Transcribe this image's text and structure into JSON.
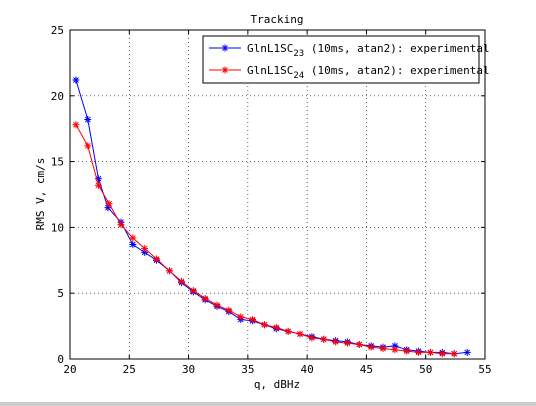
{
  "chart_data": {
    "type": "line",
    "title": "Tracking",
    "xlabel": "q, dBHz",
    "ylabel": "RMS V, cm/s",
    "xlim": [
      20,
      55
    ],
    "ylim": [
      0,
      25
    ],
    "xticks": [
      20,
      25,
      30,
      35,
      40,
      45,
      50,
      55
    ],
    "yticks": [
      0,
      5,
      10,
      15,
      20,
      25
    ],
    "grid": true,
    "legend_position": "top-right",
    "series": [
      {
        "name_main": "GlnL1SC",
        "name_sub": "23",
        "name_rest": " (10ms, atan2): experimental",
        "color": "#0000ff",
        "marker": "asterisk",
        "x": [
          20.5,
          21.5,
          22.4,
          23.2,
          24.3,
          25.3,
          26.3,
          27.3,
          28.4,
          29.4,
          30.4,
          31.4,
          32.4,
          33.4,
          34.4,
          35.4,
          36.4,
          37.4,
          38.4,
          39.4,
          40.4,
          41.4,
          42.4,
          43.4,
          44.4,
          45.4,
          46.4,
          47.4,
          48.4,
          49.4,
          50.4,
          51.4,
          52.4,
          53.5
        ],
        "y": [
          21.2,
          18.2,
          13.7,
          11.5,
          10.4,
          8.7,
          8.1,
          7.5,
          6.7,
          5.8,
          5.1,
          4.5,
          4.0,
          3.6,
          3.0,
          2.9,
          2.6,
          2.3,
          2.1,
          1.9,
          1.7,
          1.5,
          1.4,
          1.3,
          1.1,
          1.0,
          0.9,
          1.0,
          0.7,
          0.6,
          0.5,
          0.5,
          0.4,
          0.5
        ]
      },
      {
        "name_main": "GlnL1SC",
        "name_sub": "24",
        "name_rest": " (10ms, atan2): experimental",
        "color": "#ff0000",
        "marker": "asterisk",
        "x": [
          20.5,
          21.5,
          22.4,
          23.3,
          24.3,
          25.3,
          26.3,
          27.3,
          28.4,
          29.4,
          30.4,
          31.4,
          32.4,
          33.4,
          34.4,
          35.4,
          36.4,
          37.4,
          38.4,
          39.4,
          40.4,
          41.4,
          42.4,
          43.4,
          44.4,
          45.4,
          46.4,
          47.4,
          48.4,
          49.4,
          50.4,
          51.4,
          52.4
        ],
        "y": [
          17.8,
          16.2,
          13.2,
          11.8,
          10.2,
          9.2,
          8.4,
          7.6,
          6.7,
          5.9,
          5.2,
          4.6,
          4.1,
          3.7,
          3.2,
          3.0,
          2.6,
          2.4,
          2.1,
          1.9,
          1.6,
          1.5,
          1.3,
          1.2,
          1.1,
          0.9,
          0.8,
          0.7,
          0.6,
          0.5,
          0.5,
          0.4,
          0.4
        ]
      }
    ]
  }
}
